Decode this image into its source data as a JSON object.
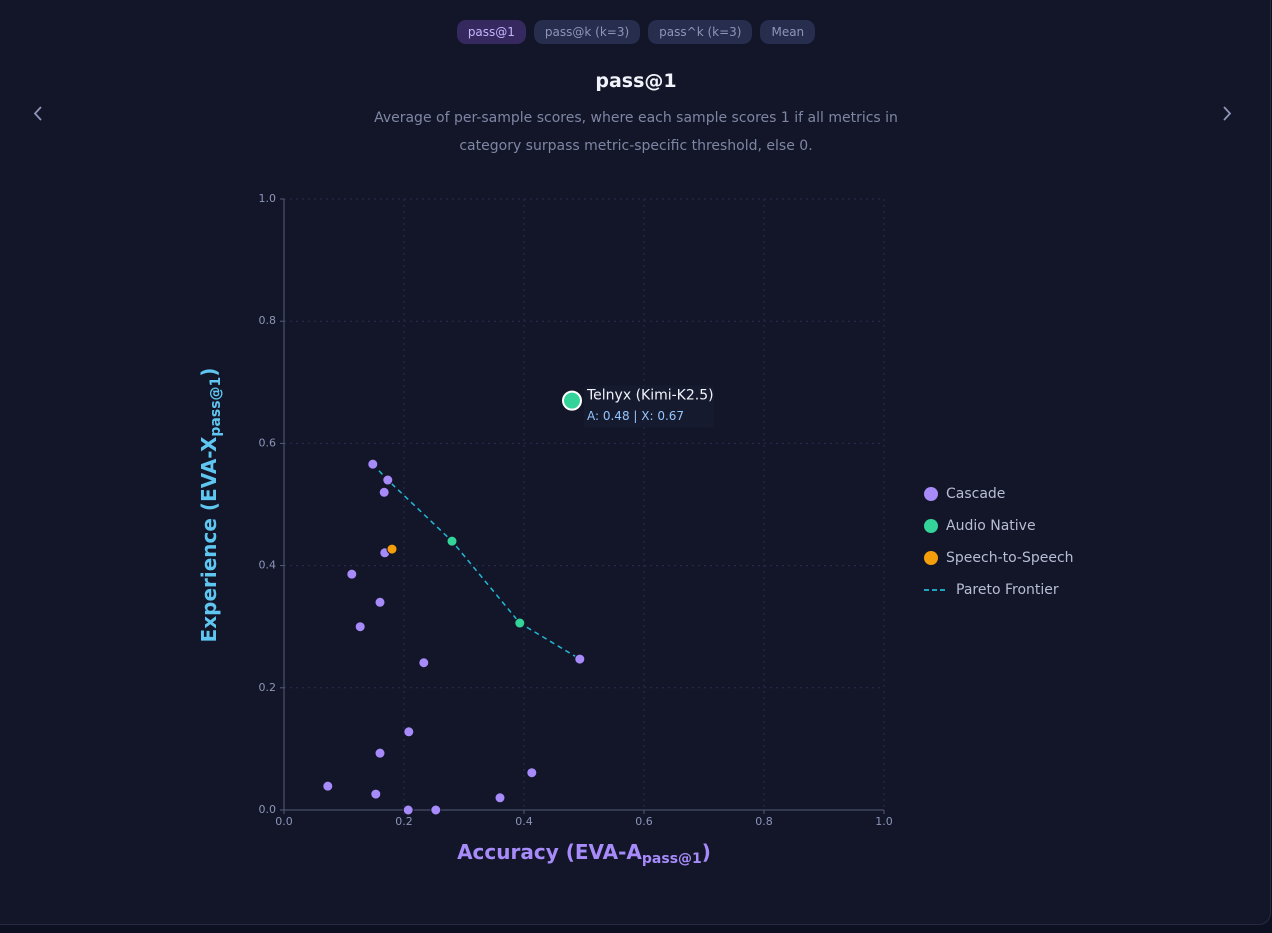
{
  "tabs": [
    "pass@1",
    "pass@k (k=3)",
    "pass^k (k=3)",
    "Mean"
  ],
  "chart_data": {
    "type": "scatter",
    "title": "pass@1",
    "subtitle": "Average of per-sample scores, where each sample scores 1 if all metrics in category surpass metric-specific threshold, else 0.",
    "x_label": {
      "main": "Accuracy (EVA-A",
      "sub": "pass@1",
      "end": ")"
    },
    "y_label": {
      "main": "Experience (EVA-X",
      "sub": "pass@1",
      "end": ")"
    },
    "xlim": [
      0,
      1
    ],
    "ylim": [
      0,
      1
    ],
    "xticks": [
      {
        "value": 0,
        "label": "0.0"
      },
      0.2,
      0.4,
      0.6,
      0.8,
      {
        "value": 1,
        "label": "1.0"
      }
    ],
    "yticks": [
      {
        "value": 0,
        "label": "0.0"
      },
      0.2,
      0.4,
      0.6,
      0.8,
      {
        "value": 1,
        "label": "1.0"
      }
    ],
    "grid": true,
    "legend": "right",
    "series": [
      {
        "name": "Cascade",
        "color": "#a78bfa",
        "x": [
          0.148,
          0.173,
          0.167,
          0.168,
          0.113,
          0.16,
          0.127,
          0.233,
          0.493,
          0.208,
          0.16,
          0.413,
          0.073,
          0.153,
          0.207,
          0.253,
          0.36
        ],
        "y": [
          0.566,
          0.54,
          0.52,
          0.421,
          0.386,
          0.34,
          0.3,
          0.241,
          0.247,
          0.128,
          0.093,
          0.061,
          0.039,
          0.026,
          0,
          0,
          0.02
        ]
      },
      {
        "name": "Audio Native",
        "color": "#34d399",
        "x": [
          0.28,
          0.393,
          0.48
        ],
        "y": [
          0.44,
          0.306,
          0.67
        ]
      },
      {
        "name": "Speech-to-Speech",
        "color": "#f59e0b",
        "x": [
          0.18
        ],
        "y": [
          0.427
        ]
      },
      {
        "name": "Pareto Frontier",
        "color": "#22b8d6",
        "type": "line",
        "dash": true,
        "x": [
          0.148,
          0.173,
          0.28,
          0.393,
          0.493
        ],
        "y": [
          0.566,
          0.54,
          0.44,
          0.306,
          0.247
        ]
      }
    ],
    "tooltip": {
      "name": "Telnyx (Kimi-K2.5)",
      "detail": "A: 0.48 | X: 0.67"
    }
  }
}
